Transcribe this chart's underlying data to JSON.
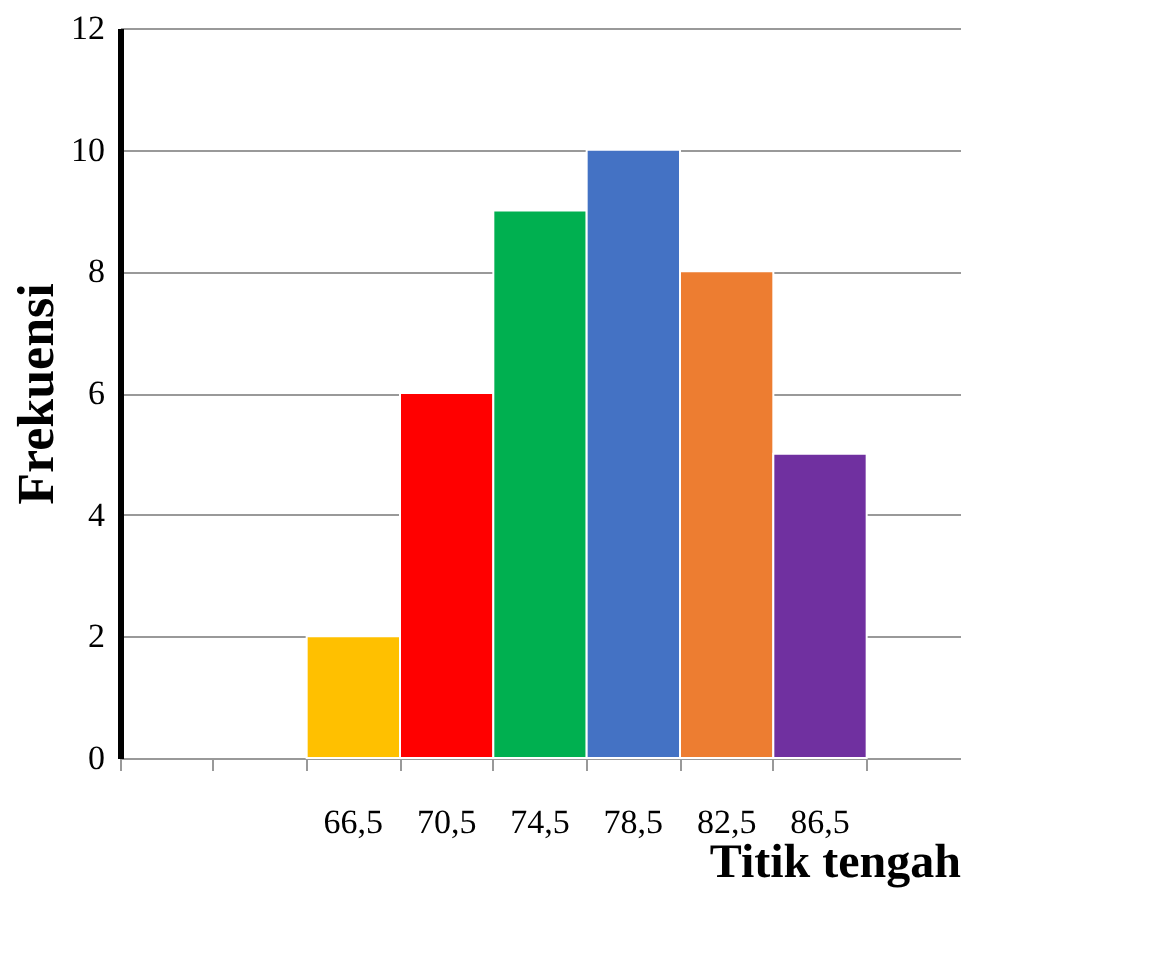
{
  "chart_data": {
    "type": "bar",
    "xlabel": "Titik tengah",
    "ylabel": "Frekuensi",
    "categories": [
      null,
      null,
      "66,5",
      "70,5",
      "74,5",
      "78,5",
      "82,5",
      "86,5",
      null
    ],
    "values": [
      null,
      null,
      2,
      6,
      9,
      10,
      8,
      5,
      null
    ],
    "colors": [
      "#ffc000",
      "#ffc000",
      "#ffc000",
      "#ff0000",
      "#00b050",
      "#4472c4",
      "#ed7d31",
      "#7030a0",
      "#7030a0"
    ],
    "ylim": [
      0,
      12
    ],
    "yticks": [
      0,
      2,
      4,
      6,
      8,
      10,
      12
    ],
    "grid": "y"
  }
}
